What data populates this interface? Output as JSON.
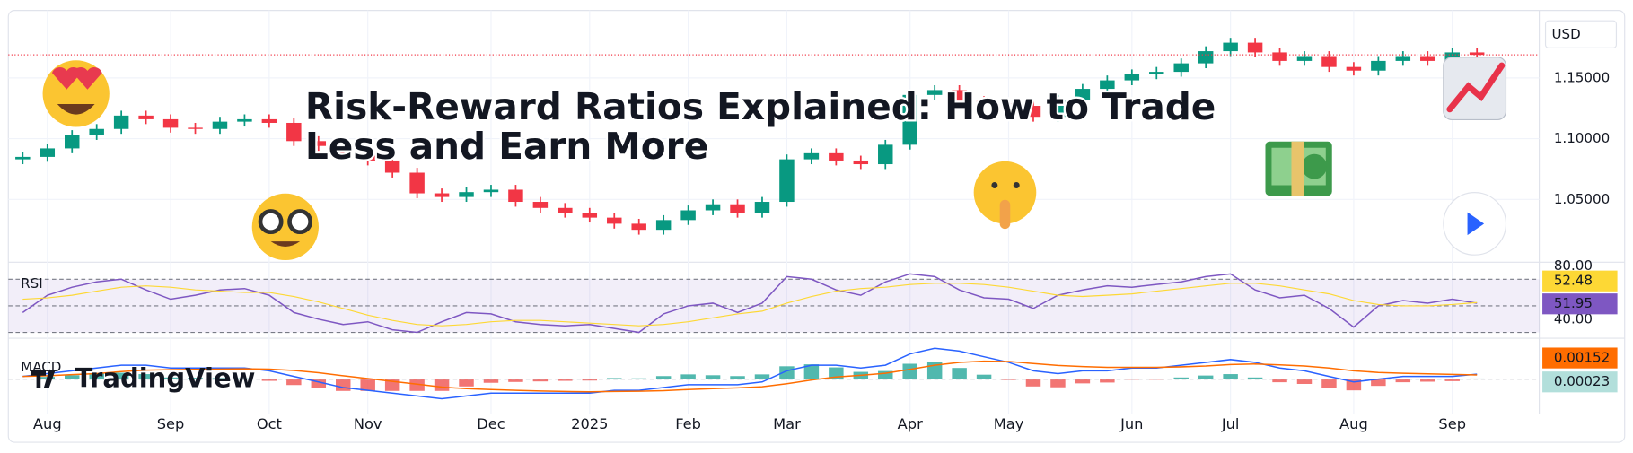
{
  "chart_data": [
    {
      "type": "candlestick",
      "currency": "USD",
      "up_color": "#089981",
      "down_color": "#f23645",
      "grid": true,
      "categories": [
        null,
        "Aug",
        null,
        null,
        null,
        null,
        "Sep",
        null,
        null,
        null,
        "Oct",
        null,
        null,
        null,
        "Nov",
        null,
        null,
        null,
        null,
        "Dec",
        null,
        null,
        null,
        "2025",
        null,
        null,
        null,
        "Feb",
        null,
        null,
        null,
        "Mar",
        null,
        null,
        null,
        null,
        "Apr",
        null,
        null,
        null,
        "May",
        null,
        null,
        null,
        null,
        "Jun",
        null,
        null,
        null,
        "Jul",
        null,
        null,
        null,
        null,
        "Aug",
        null,
        null,
        null,
        "Sep",
        null
      ],
      "open": [
        1.083,
        1.085,
        1.092,
        1.103,
        1.108,
        1.119,
        1.116,
        1.109,
        1.108,
        1.114,
        1.116,
        1.113,
        1.098,
        1.094,
        1.086,
        1.082,
        1.072,
        1.055,
        1.052,
        1.056,
        1.058,
        1.048,
        1.043,
        1.039,
        1.035,
        1.03,
        1.025,
        1.033,
        1.041,
        1.046,
        1.039,
        1.048,
        1.083,
        1.088,
        1.082,
        1.079,
        1.095,
        1.136,
        1.14,
        1.131,
        1.129,
        1.127,
        1.118,
        1.132,
        1.141,
        1.148,
        1.153,
        1.155,
        1.162,
        1.172,
        1.179,
        1.171,
        1.164,
        1.168,
        1.159,
        1.156,
        1.164,
        1.168,
        1.164,
        1.171
      ],
      "high": [
        1.089,
        1.096,
        1.107,
        1.112,
        1.123,
        1.123,
        1.12,
        1.113,
        1.118,
        1.12,
        1.12,
        1.117,
        1.102,
        1.098,
        1.09,
        1.086,
        1.076,
        1.059,
        1.06,
        1.062,
        1.062,
        1.052,
        1.047,
        1.043,
        1.039,
        1.034,
        1.037,
        1.045,
        1.05,
        1.05,
        1.052,
        1.087,
        1.092,
        1.092,
        1.086,
        1.099,
        1.14,
        1.144,
        1.144,
        1.135,
        1.133,
        1.131,
        1.136,
        1.145,
        1.152,
        1.157,
        1.159,
        1.166,
        1.176,
        1.183,
        1.183,
        1.175,
        1.172,
        1.172,
        1.163,
        1.168,
        1.172,
        1.172,
        1.175,
        1.175
      ],
      "low": [
        1.079,
        1.081,
        1.088,
        1.099,
        1.104,
        1.112,
        1.105,
        1.104,
        1.104,
        1.11,
        1.109,
        1.094,
        1.09,
        1.082,
        1.078,
        1.068,
        1.051,
        1.048,
        1.048,
        1.052,
        1.044,
        1.039,
        1.035,
        1.031,
        1.026,
        1.021,
        1.021,
        1.029,
        1.037,
        1.035,
        1.035,
        1.044,
        1.079,
        1.078,
        1.075,
        1.075,
        1.091,
        1.132,
        1.127,
        1.125,
        1.123,
        1.114,
        1.114,
        1.128,
        1.137,
        1.144,
        1.149,
        1.151,
        1.158,
        1.168,
        1.167,
        1.16,
        1.16,
        1.155,
        1.152,
        1.152,
        1.16,
        1.16,
        1.16,
        1.165
      ],
      "close": [
        1.085,
        1.092,
        1.103,
        1.108,
        1.119,
        1.116,
        1.109,
        1.108,
        1.114,
        1.116,
        1.113,
        1.098,
        1.094,
        1.086,
        1.082,
        1.072,
        1.055,
        1.052,
        1.056,
        1.058,
        1.048,
        1.043,
        1.039,
        1.035,
        1.03,
        1.025,
        1.033,
        1.041,
        1.046,
        1.039,
        1.048,
        1.083,
        1.088,
        1.082,
        1.079,
        1.095,
        1.136,
        1.14,
        1.131,
        1.129,
        1.127,
        1.118,
        1.132,
        1.141,
        1.148,
        1.153,
        1.155,
        1.162,
        1.172,
        1.179,
        1.171,
        1.164,
        1.168,
        1.159,
        1.156,
        1.164,
        1.168,
        1.164,
        1.171,
        1.169
      ],
      "ylim": [
        1.0,
        1.197
      ],
      "yticks": [
        {
          "value": 1.05,
          "label": "1.05000"
        },
        {
          "value": 1.1,
          "label": "1.10000"
        },
        {
          "value": 1.15,
          "label": "1.15000"
        }
      ]
    },
    {
      "type": "rsi",
      "title": "RSI",
      "band_color": "#7e57c2",
      "series": [
        {
          "color": "#7e57c2",
          "values": [
            45,
            58,
            64,
            68,
            70,
            62,
            55,
            58,
            62,
            63,
            58,
            45,
            40,
            36,
            38,
            32,
            30,
            38,
            45,
            44,
            38,
            36,
            35,
            36,
            33,
            30,
            44,
            50,
            52,
            45,
            52,
            72,
            70,
            62,
            58,
            68,
            74,
            72,
            62,
            56,
            55,
            48,
            58,
            62,
            65,
            64,
            66,
            68,
            72,
            74,
            62,
            56,
            58,
            48,
            34,
            50,
            54,
            52,
            55,
            51.95
          ]
        },
        {
          "color": "#fdd835",
          "values": [
            55,
            56,
            58,
            61,
            64,
            65,
            64,
            62,
            61,
            60,
            60,
            57,
            53,
            48,
            43,
            39,
            36,
            35,
            36,
            38,
            39,
            39,
            38,
            37,
            36,
            35,
            36,
            38,
            41,
            44,
            46,
            52,
            57,
            61,
            63,
            64,
            66,
            67,
            67,
            66,
            64,
            61,
            58,
            57,
            58,
            59,
            61,
            63,
            65,
            67,
            67,
            65,
            62,
            59,
            54,
            51,
            50,
            50,
            51,
            52.48
          ]
        }
      ],
      "levels": [
        30,
        50,
        70
      ],
      "ylim": [
        28,
        82
      ],
      "yticks": [
        {
          "value": 40,
          "label": "40.00"
        },
        {
          "value": 80,
          "label": "80.00"
        }
      ]
    },
    {
      "type": "macd",
      "title": "MACD",
      "up_color": "#26a69a",
      "down_color": "#ef5350",
      "series": [
        {
          "color": "#2962ff",
          "values": [
            0.001,
            0.002,
            0.003,
            0.004,
            0.005,
            0.005,
            0.004,
            0.004,
            0.004,
            0.004,
            0.003,
            0.001,
            -0.001,
            -0.003,
            -0.004,
            -0.005,
            -0.006,
            -0.007,
            -0.006,
            -0.005,
            -0.005,
            -0.005,
            -0.005,
            -0.005,
            -0.004,
            -0.004,
            -0.003,
            -0.002,
            -0.002,
            -0.002,
            -0.001,
            0.003,
            0.005,
            0.005,
            0.004,
            0.005,
            0.009,
            0.011,
            0.01,
            0.008,
            0.006,
            0.003,
            0.002,
            0.003,
            0.003,
            0.004,
            0.004,
            0.005,
            0.006,
            0.007,
            0.006,
            0.004,
            0.003,
            0.001,
            -0.001,
            0.0,
            0.001,
            0.001,
            0.001,
            0.00175
          ]
        },
        {
          "color": "#ff6d00",
          "values": [
            0.001,
            0.0012,
            0.0016,
            0.002,
            0.0027,
            0.0032,
            0.0034,
            0.0035,
            0.0036,
            0.0037,
            0.0036,
            0.0031,
            0.0023,
            0.0012,
            0.0002,
            -0.0008,
            -0.0018,
            -0.0028,
            -0.0034,
            -0.0037,
            -0.004,
            -0.0042,
            -0.0044,
            -0.0045,
            -0.0044,
            -0.0043,
            -0.0041,
            -0.0037,
            -0.0034,
            -0.0031,
            -0.0027,
            -0.0016,
            -0.0003,
            0.0008,
            0.0014,
            0.0021,
            0.0035,
            0.005,
            0.006,
            0.0064,
            0.0063,
            0.0056,
            0.0049,
            0.0045,
            0.0042,
            0.0042,
            0.0042,
            0.0044,
            0.0047,
            0.0052,
            0.0054,
            0.0051,
            0.0047,
            0.004,
            0.003,
            0.0024,
            0.0021,
            0.0019,
            0.0017,
            0.00152
          ]
        }
      ],
      "histogram": [
        0,
        0.0008,
        0.0014,
        0.002,
        0.0023,
        0.0018,
        0.0006,
        0.0005,
        0.0004,
        0.0003,
        -0.0006,
        -0.0021,
        -0.0033,
        -0.0042,
        -0.0042,
        -0.0042,
        -0.0042,
        -0.0042,
        -0.0026,
        -0.0013,
        -0.001,
        -0.0008,
        -0.0006,
        -0.0005,
        0.0004,
        0.0003,
        0.0011,
        0.0017,
        0.0014,
        0.0011,
        0.0017,
        0.0046,
        0.0053,
        0.0042,
        0.0026,
        0.0029,
        0.0055,
        0.006,
        0.004,
        0.0016,
        -0.0003,
        -0.0026,
        -0.0029,
        -0.0015,
        -0.0012,
        -0.0002,
        -0.0002,
        0.0006,
        0.0013,
        0.0018,
        0.0006,
        -0.0011,
        -0.0017,
        -0.003,
        -0.004,
        -0.0024,
        -0.0011,
        -0.0009,
        -0.0007,
        0.00023
      ],
      "ylim": [
        -0.0125,
        0.0135
      ]
    }
  ],
  "overlay": {
    "headline_lines": [
      "Risk-Reward Ratios Explained: How to Trade",
      "Less and Earn More"
    ],
    "logo": "TradingView"
  }
}
